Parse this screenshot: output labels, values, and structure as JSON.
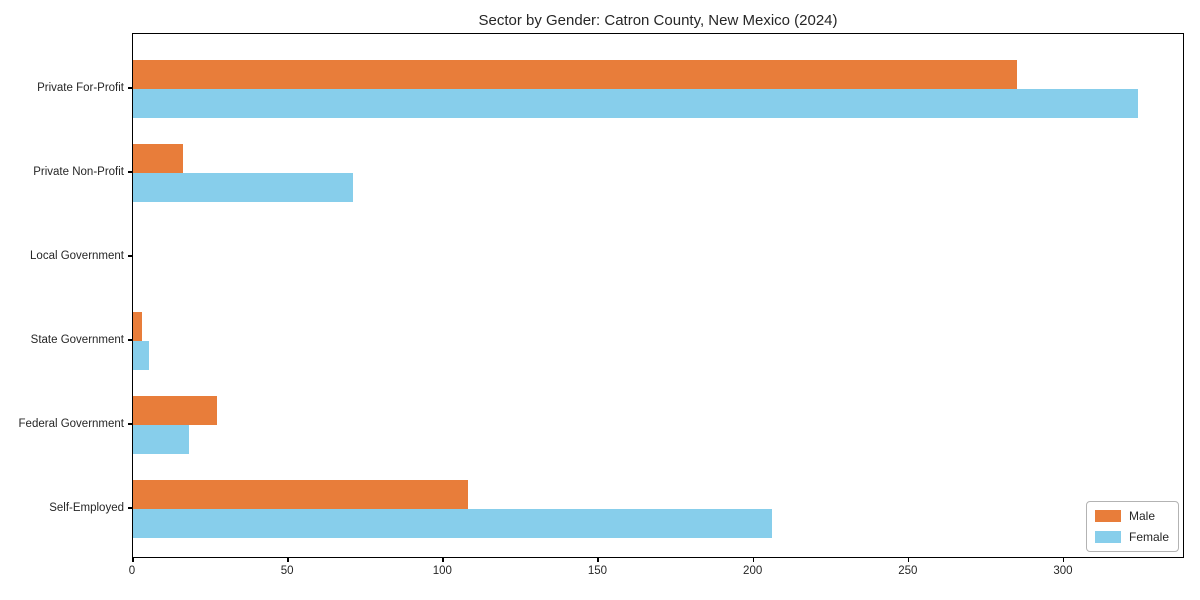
{
  "title": "Sector by Gender: Catron County, New Mexico (2024)",
  "colors": {
    "male_bar": "#E87D3A",
    "female_bar": "#87CEEB",
    "axis": "#000000",
    "text": "#262626",
    "legend_border": "#b3b3b3",
    "background": "#ffffff"
  },
  "chart_data": {
    "type": "bar",
    "orientation": "horizontal",
    "title": "Sector by Gender: Catron County, New Mexico (2024)",
    "xlabel": "",
    "ylabel": "",
    "categories": [
      "Private For-Profit",
      "Private Non-Profit",
      "Local Government",
      "State Government",
      "Federal Government",
      "Self-Employed"
    ],
    "series": [
      {
        "name": "Male",
        "color": "#E87D3A",
        "values": [
          285,
          16,
          0,
          3,
          27,
          108
        ]
      },
      {
        "name": "Female",
        "color": "#87CEEB",
        "values": [
          324,
          71,
          0,
          5,
          18,
          206
        ]
      }
    ],
    "xlim": [
      0,
      339
    ],
    "xticks": [
      0,
      50,
      100,
      150,
      200,
      250,
      300
    ],
    "grid": false,
    "legend": {
      "position": "lower right",
      "entries": [
        "Male",
        "Female"
      ]
    }
  }
}
